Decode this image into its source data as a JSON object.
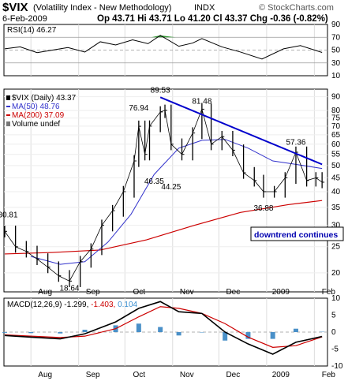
{
  "header": {
    "symbol": "$VIX",
    "name": "(Volatility Index - New Methodology)",
    "exchange": "INDX",
    "watermark": "© StockCharts.com",
    "date": "6-Feb-2009",
    "ohlc_text": "Op 43.71  Hi 43.71  Lo 41.20  Cl 43.37  Chg -0.36 (-0.82%)"
  },
  "colors": {
    "price": "#000000",
    "ma50": "#3333cc",
    "ma200": "#cc0000",
    "trendline": "#0000cc",
    "rsi": "#000000",
    "rsi_fill": "#339933",
    "macd": "#000000",
    "signal": "#cc0000",
    "histogram": "#4a90c8",
    "hist_label": "#3a8fd0"
  },
  "chart_data": [
    {
      "type": "line",
      "panel": "rsi",
      "legend": "RSI(14) 46.27",
      "ylim": [
        10,
        90
      ],
      "yticks": [
        10,
        30,
        50,
        70,
        90
      ],
      "x": [
        "2008-07-15",
        "2008-07-25",
        "2008-08-05",
        "2008-08-15",
        "2008-08-25",
        "2008-09-05",
        "2008-09-15",
        "2008-09-25",
        "2008-10-06",
        "2008-10-16",
        "2008-10-24",
        "2008-11-05",
        "2008-11-14",
        "2008-11-20",
        "2008-12-03",
        "2008-12-15",
        "2008-12-29",
        "2009-01-12",
        "2009-01-23",
        "2009-02-06"
      ],
      "values": [
        52,
        55,
        46,
        50,
        54,
        47,
        63,
        58,
        66,
        60,
        73,
        56,
        61,
        68,
        55,
        47,
        36,
        52,
        57,
        46.27
      ]
    },
    {
      "type": "line",
      "panel": "price",
      "legend": [
        "$VIX (Daily) 43.37",
        "MA(50) 48.76",
        "MA(200) 37.09",
        "Volume undef"
      ],
      "yscale": "log",
      "yticks": [
        20,
        25,
        30,
        35,
        40,
        45,
        50,
        55,
        60,
        65,
        70,
        75,
        80,
        90
      ],
      "x_labels": [
        "Aug",
        "Sep",
        "Oct",
        "Nov",
        "Dec",
        "2009",
        "Feb"
      ],
      "series": [
        {
          "name": "$VIX (Daily)",
          "x": [
            "2008-07-15",
            "2008-07-22",
            "2008-07-29",
            "2008-08-05",
            "2008-08-12",
            "2008-08-19",
            "2008-08-26",
            "2008-09-02",
            "2008-09-09",
            "2008-09-16",
            "2008-09-23",
            "2008-09-30",
            "2008-10-07",
            "2008-10-10",
            "2008-10-14",
            "2008-10-17",
            "2008-10-24",
            "2008-10-27",
            "2008-10-31",
            "2008-11-07",
            "2008-11-14",
            "2008-11-20",
            "2008-11-26",
            "2008-12-03",
            "2008-12-10",
            "2008-12-17",
            "2008-12-24",
            "2008-12-30",
            "2009-01-06",
            "2009-01-13",
            "2009-01-20",
            "2009-01-27",
            "2009-02-02",
            "2009-02-06"
          ],
          "values": [
            28.5,
            25.0,
            24.0,
            22.5,
            21.0,
            19.5,
            18.64,
            22.0,
            24.5,
            30.0,
            34.0,
            40.0,
            52.0,
            69.9,
            55.0,
            70.0,
            79.0,
            80.1,
            60.0,
            55.0,
            66.0,
            80.9,
            60.0,
            64.0,
            57.0,
            47.0,
            44.0,
            40.0,
            40.0,
            45.0,
            56.0,
            44.0,
            45.0,
            43.37
          ]
        },
        {
          "name": "MA(50)",
          "x": [
            "2008-08-01",
            "2008-08-20",
            "2008-09-05",
            "2008-09-20",
            "2008-10-05",
            "2008-10-20",
            "2008-11-05",
            "2008-11-20",
            "2008-12-05",
            "2008-12-20",
            "2009-01-05",
            "2009-01-20",
            "2009-02-06"
          ],
          "values": [
            23.0,
            21.5,
            22.0,
            26.0,
            33.0,
            46.35,
            58.0,
            62.0,
            62.5,
            58.0,
            52.0,
            50.5,
            48.76
          ]
        },
        {
          "name": "MA(200)",
          "x": [
            "2008-07-15",
            "2008-08-15",
            "2008-09-15",
            "2008-10-15",
            "2008-11-15",
            "2008-12-15",
            "2009-01-15",
            "2009-02-06"
          ],
          "values": [
            23.5,
            23.8,
            24.3,
            26.5,
            30.0,
            33.5,
            35.8,
            37.09
          ]
        },
        {
          "name": "trendline",
          "x": [
            "2008-10-24",
            "2009-02-06"
          ],
          "values": [
            89.53,
            50.5
          ]
        }
      ],
      "annotations": [
        {
          "text": "30.81",
          "x": "2008-07-15",
          "y": 30.81
        },
        {
          "text": "18.64",
          "x": "2008-08-26",
          "y": 18.64
        },
        {
          "text": "76.94",
          "x": "2008-10-10",
          "y": 76.94
        },
        {
          "text": "89.53",
          "x": "2008-10-24",
          "y": 89.53
        },
        {
          "text": "46.35",
          "x": "2008-10-20",
          "y": 46.35
        },
        {
          "text": "44.25",
          "x": "2008-10-31",
          "y": 44.25
        },
        {
          "text": "81.48",
          "x": "2008-11-20",
          "y": 81.48
        },
        {
          "text": "36.88",
          "x": "2008-12-30",
          "y": 36.88
        },
        {
          "text": "57.36",
          "x": "2009-01-20",
          "y": 57.36
        }
      ],
      "note": "downtrend continues"
    },
    {
      "type": "line",
      "panel": "macd",
      "legend": [
        "MACD(12,26,9) -1.299, ",
        "-1.403, ",
        "0.104"
      ],
      "ylim": [
        -10,
        10
      ],
      "yticks": [
        -10,
        -5,
        0,
        5,
        10
      ],
      "x_labels": [
        "Aug",
        "Sep",
        "Oct",
        "Nov",
        "Dec",
        "2009",
        "Feb"
      ],
      "series": [
        {
          "name": "MACD",
          "x": [
            "2008-07-15",
            "2008-08-01",
            "2008-08-20",
            "2008-09-05",
            "2008-09-25",
            "2008-10-10",
            "2008-10-24",
            "2008-11-05",
            "2008-11-20",
            "2008-12-05",
            "2008-12-20",
            "2009-01-05",
            "2009-01-20",
            "2009-02-06"
          ],
          "values": [
            -1.0,
            -1.5,
            -2.0,
            -0.5,
            3.0,
            7.0,
            9.0,
            6.0,
            5.5,
            0.0,
            -3.5,
            -6.5,
            -3.0,
            -1.299
          ]
        },
        {
          "name": "Signal",
          "x": [
            "2008-07-15",
            "2008-08-01",
            "2008-08-20",
            "2008-09-05",
            "2008-09-25",
            "2008-10-10",
            "2008-10-24",
            "2008-11-05",
            "2008-11-20",
            "2008-12-05",
            "2008-12-20",
            "2009-01-05",
            "2009-01-20",
            "2009-02-06"
          ],
          "values": [
            -0.8,
            -1.2,
            -1.6,
            -1.2,
            1.0,
            4.5,
            7.5,
            7.0,
            5.5,
            2.5,
            -1.5,
            -4.5,
            -4.0,
            -1.403
          ]
        },
        {
          "name": "Histogram",
          "type": "bar",
          "x": [
            "2008-07-15",
            "2008-08-01",
            "2008-08-20",
            "2008-09-05",
            "2008-09-25",
            "2008-10-10",
            "2008-10-24",
            "2008-11-05",
            "2008-11-20",
            "2008-12-05",
            "2008-12-20",
            "2009-01-05",
            "2009-01-20",
            "2009-02-06"
          ],
          "values": [
            -0.2,
            -0.3,
            -0.4,
            0.7,
            2.0,
            2.5,
            1.5,
            -1.0,
            0.0,
            -2.5,
            -2.0,
            -2.0,
            1.0,
            0.104
          ]
        }
      ]
    }
  ]
}
